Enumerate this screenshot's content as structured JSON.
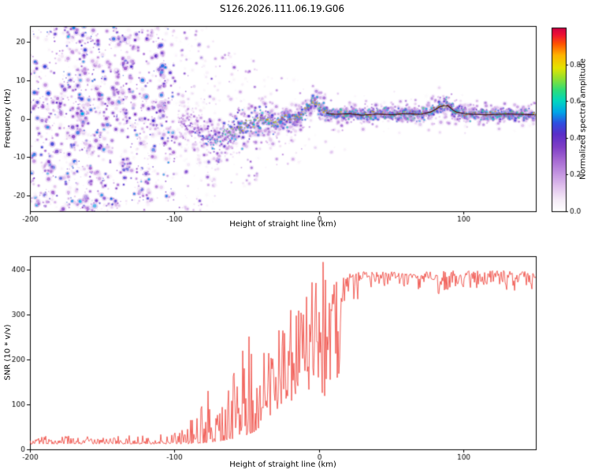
{
  "figure": {
    "background": "#ffffff"
  },
  "chart_data": [
    {
      "type": "heatmap",
      "panel": "top",
      "title": "S126.2026.111.06.19.G06",
      "xlabel": "Height of straight line (km)",
      "ylabel": "Frequency (Hz)",
      "xlim": [
        -200,
        150
      ],
      "ylim": [
        -24,
        24
      ],
      "xticks": [
        -200,
        -100,
        0,
        100
      ],
      "yticks": [
        -20,
        -10,
        0,
        10,
        20
      ],
      "grid": false,
      "colorbar": {
        "label": "Normalized spectral amplitude",
        "ticks": [
          "0.0",
          "0.2",
          "0.4",
          "0.6",
          "0.8"
        ],
        "tick_values": [
          0,
          0.2,
          0.4,
          0.6,
          0.8
        ],
        "range": [
          0,
          1
        ],
        "stops": [
          [
            0.0,
            "#ffffff"
          ],
          [
            0.06,
            "#f6edf8"
          ],
          [
            0.13,
            "#e2c4ee"
          ],
          [
            0.2,
            "#c698e2"
          ],
          [
            0.28,
            "#a568d2"
          ],
          [
            0.35,
            "#7f3ec6"
          ],
          [
            0.42,
            "#5a2ec8"
          ],
          [
            0.48,
            "#2e4fe0"
          ],
          [
            0.54,
            "#00a6e8"
          ],
          [
            0.6,
            "#00d6c0"
          ],
          [
            0.66,
            "#2edd78"
          ],
          [
            0.72,
            "#8ee032"
          ],
          [
            0.78,
            "#e4e400"
          ],
          [
            0.85,
            "#ffb300"
          ],
          [
            0.91,
            "#ff5500"
          ],
          [
            0.96,
            "#ee1133"
          ],
          [
            1.0,
            "#cc0044"
          ]
        ]
      },
      "noise_field": {
        "x_range": [
          -200,
          -102
        ],
        "y_range": [
          -24,
          24
        ],
        "clusters": 480,
        "amp_range": [
          0.04,
          0.55
        ]
      },
      "scatter_fields": [
        {
          "x_range": [
            -102,
            -72
          ],
          "y_range": [
            -24,
            24
          ],
          "count": 170,
          "amp_max": 0.4
        },
        {
          "x_range": [
            -72,
            -42
          ],
          "y_range": [
            -19,
            17
          ],
          "count": 110,
          "amp_max": 0.32
        },
        {
          "x_range": [
            -42,
            -12
          ],
          "y_range": [
            -13,
            11
          ],
          "count": 55,
          "amp_max": 0.26
        },
        {
          "x_range": [
            -12,
            25
          ],
          "y_range": [
            -9,
            9
          ],
          "count": 28,
          "amp_max": 0.2
        },
        {
          "x_range": [
            25,
            150
          ],
          "y_range": [
            -4,
            7
          ],
          "count": 45,
          "amp_max": 0.16
        }
      ],
      "ridge": [
        [
          -97,
          -1,
          6,
          0.3
        ],
        [
          -90,
          -2,
          6,
          0.42
        ],
        [
          -84,
          -3.5,
          6,
          0.5
        ],
        [
          -78,
          -5.5,
          6,
          0.55
        ],
        [
          -72,
          -5.5,
          6.5,
          0.62
        ],
        [
          -66,
          -4.5,
          6.5,
          0.7
        ],
        [
          -60,
          -3.5,
          6,
          0.78
        ],
        [
          -54,
          -2.5,
          5.5,
          0.82
        ],
        [
          -48,
          -1.8,
          5,
          0.85
        ],
        [
          -44,
          -1,
          4.6,
          0.86
        ],
        [
          -40,
          0.3,
          4.2,
          0.88
        ],
        [
          -36,
          -0.5,
          3.8,
          0.9
        ],
        [
          -32,
          -1.5,
          3.4,
          0.9
        ],
        [
          -28,
          -0.8,
          3.2,
          0.9
        ],
        [
          -24,
          0.4,
          3.0,
          0.92
        ],
        [
          -20,
          -0.2,
          2.9,
          0.92
        ],
        [
          -16,
          0.3,
          2.7,
          0.92
        ],
        [
          -12,
          1.2,
          2.6,
          0.93
        ],
        [
          -8,
          2.6,
          2.6,
          0.93
        ],
        [
          -4,
          4.3,
          2.5,
          0.94
        ],
        [
          -1,
          3.8,
          2.4,
          0.95
        ],
        [
          2,
          2.2,
          2.3,
          0.95
        ],
        [
          6,
          1.3,
          2.1,
          0.95
        ],
        [
          12,
          1.1,
          2.0,
          0.96
        ],
        [
          20,
          1.3,
          1.9,
          0.96
        ],
        [
          30,
          0.9,
          1.9,
          0.96
        ],
        [
          40,
          1.2,
          1.9,
          0.96
        ],
        [
          50,
          1.0,
          1.9,
          0.96
        ],
        [
          60,
          1.3,
          1.9,
          0.96
        ],
        [
          70,
          1.1,
          2.0,
          0.96
        ],
        [
          78,
          1.8,
          2.2,
          0.96
        ],
        [
          84,
          3.2,
          2.6,
          0.94
        ],
        [
          89,
          3.4,
          2.6,
          0.92
        ],
        [
          94,
          1.8,
          2.2,
          0.95
        ],
        [
          102,
          1.2,
          2.0,
          0.96
        ],
        [
          115,
          1.0,
          1.9,
          0.96
        ],
        [
          130,
          1.2,
          1.9,
          0.96
        ],
        [
          150,
          1.0,
          1.9,
          0.96
        ]
      ],
      "core_line_color": "#3a0008",
      "core_line_xrange": [
        5,
        150
      ]
    },
    {
      "type": "line",
      "panel": "bottom",
      "xlabel": "Height of straight line (km)",
      "ylabel": "SNR (10 * v/v)",
      "xlim": [
        -200,
        150
      ],
      "ylim": [
        0,
        430
      ],
      "xticks": [
        -200,
        -100,
        0,
        100
      ],
      "yticks": [
        0,
        100,
        200,
        300,
        400
      ],
      "grid": false,
      "color": "#ee3b32",
      "envelope": [
        [
          -200,
          12,
          30,
          2.2
        ],
        [
          -150,
          12,
          30,
          2.2
        ],
        [
          -118,
          12,
          32,
          2.2
        ],
        [
          -100,
          12,
          36,
          2.4
        ],
        [
          -90,
          12,
          60,
          3.0
        ],
        [
          -83,
          13,
          120,
          3.4
        ],
        [
          -76,
          15,
          160,
          3.0
        ],
        [
          -70,
          18,
          150,
          2.6
        ],
        [
          -64,
          20,
          140,
          2.6
        ],
        [
          -58,
          25,
          230,
          2.8
        ],
        [
          -52,
          30,
          220,
          2.2
        ],
        [
          -47,
          35,
          320,
          2.8
        ],
        [
          -42,
          45,
          240,
          1.8
        ],
        [
          -36,
          60,
          260,
          1.6
        ],
        [
          -30,
          80,
          290,
          1.5
        ],
        [
          -24,
          100,
          300,
          1.3
        ],
        [
          -18,
          110,
          320,
          1.3
        ],
        [
          -12,
          110,
          340,
          1.2
        ],
        [
          -6,
          130,
          360,
          1.1
        ],
        [
          -2,
          140,
          420,
          1.1
        ],
        [
          2,
          120,
          430,
          1.0
        ],
        [
          6,
          110,
          390,
          1.0
        ],
        [
          10,
          95,
          380,
          0.9
        ],
        [
          14,
          150,
          385,
          0.8
        ],
        [
          18,
          240,
          390,
          0.7
        ],
        [
          22,
          300,
          392,
          0.6
        ],
        [
          26,
          330,
          394,
          0.55
        ],
        [
          32,
          348,
          396,
          0.5
        ],
        [
          45,
          352,
          396,
          0.5
        ],
        [
          60,
          350,
          394,
          0.5
        ],
        [
          75,
          345,
          396,
          0.55
        ],
        [
          83,
          325,
          396,
          0.6
        ],
        [
          90,
          348,
          398,
          0.5
        ],
        [
          105,
          352,
          398,
          0.5
        ],
        [
          120,
          355,
          400,
          0.5
        ],
        [
          135,
          352,
          396,
          0.5
        ],
        [
          150,
          352,
          396,
          0.5
        ]
      ]
    }
  ]
}
